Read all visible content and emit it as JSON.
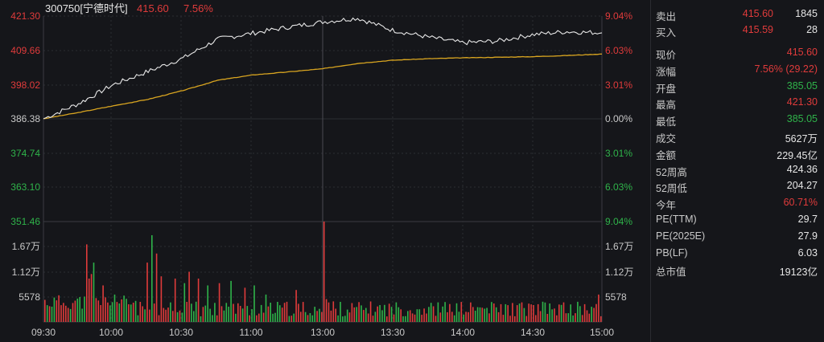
{
  "colors": {
    "background": "#15161a",
    "up": "#e03b3b",
    "down": "#2fb34a",
    "price_line": "#e8e8e8",
    "avg_line": "#d9a520",
    "grid": "#2c2d33"
  },
  "header": {
    "code_name": "300750[宁德时代]",
    "price": "415.60",
    "change_pct": "7.56%"
  },
  "axes": {
    "price_labels": [
      "421.30",
      "409.66",
      "398.02",
      "386.38",
      "374.74",
      "363.10",
      "351.46"
    ],
    "pct_labels": [
      "9.04%",
      "6.03%",
      "3.01%",
      "0.00%",
      "3.01%",
      "6.03%",
      "9.04%"
    ],
    "volume_labels": [
      "1.67万",
      "1.12万",
      "5578"
    ],
    "time_labels": [
      "09:30",
      "10:00",
      "10:30",
      "11:00",
      "13:00",
      "13:30",
      "14:00",
      "14:30",
      "15:00"
    ]
  },
  "quote": {
    "sell": {
      "label": "卖出",
      "price": "415.60",
      "qty": "1845"
    },
    "buy": {
      "label": "买入",
      "price": "415.59",
      "qty": "28"
    },
    "rows": [
      {
        "label": "现价",
        "value": "415.60",
        "color": "red"
      },
      {
        "label": "涨幅",
        "value": "7.56% (29.22)",
        "color": "red"
      },
      {
        "label": "开盘",
        "value": "385.05",
        "color": "green"
      },
      {
        "label": "最高",
        "value": "421.30",
        "color": "red"
      },
      {
        "label": "最低",
        "value": "385.05",
        "color": "green"
      },
      {
        "label": "成交",
        "value": "5627万",
        "color": "white"
      },
      {
        "label": "金额",
        "value": "229.45亿",
        "color": "white"
      },
      {
        "label": "52周高",
        "value": "424.36",
        "color": "white"
      },
      {
        "label": "52周低",
        "value": "204.27",
        "color": "white"
      },
      {
        "label": "今年",
        "value": "60.71%",
        "color": "red"
      },
      {
        "label": "PE(TTM)",
        "value": "29.7",
        "color": "white"
      },
      {
        "label": "PE(2025E)",
        "value": "27.9",
        "color": "white"
      },
      {
        "label": "PB(LF)",
        "value": "6.03",
        "color": "white"
      },
      {
        "label": "总市值",
        "value": "19123亿",
        "color": "white"
      }
    ]
  },
  "chart_data": {
    "type": "line",
    "prev_close": 386.38,
    "ylim": [
      351.46,
      421.3
    ],
    "x": [
      "09:30",
      "09:45",
      "10:00",
      "10:15",
      "10:30",
      "10:45",
      "11:00",
      "11:15",
      "11:30/13:00",
      "13:15",
      "13:30",
      "13:45",
      "14:00",
      "14:15",
      "14:30",
      "14:45",
      "15:00"
    ],
    "series": [
      {
        "values": [
          386.4,
          391.5,
          398.0,
          402.5,
          407.0,
          413.5,
          415.5,
          417.5,
          419.3,
          420.6,
          416.5,
          414.2,
          412.2,
          412.8,
          415.0,
          416.0,
          415.6
        ]
      },
      {
        "values": [
          386.4,
          388.5,
          390.8,
          393.0,
          396.0,
          399.5,
          401.3,
          402.3,
          403.4,
          405.2,
          406.3,
          406.8,
          407.1,
          407.3,
          407.5,
          407.9,
          408.4
        ]
      }
    ],
    "volume": {
      "ylim": [
        0,
        22000
      ],
      "ticks": [
        5578,
        11200,
        16700
      ],
      "peak": {
        "time": "13:00",
        "value": 22000
      }
    }
  }
}
